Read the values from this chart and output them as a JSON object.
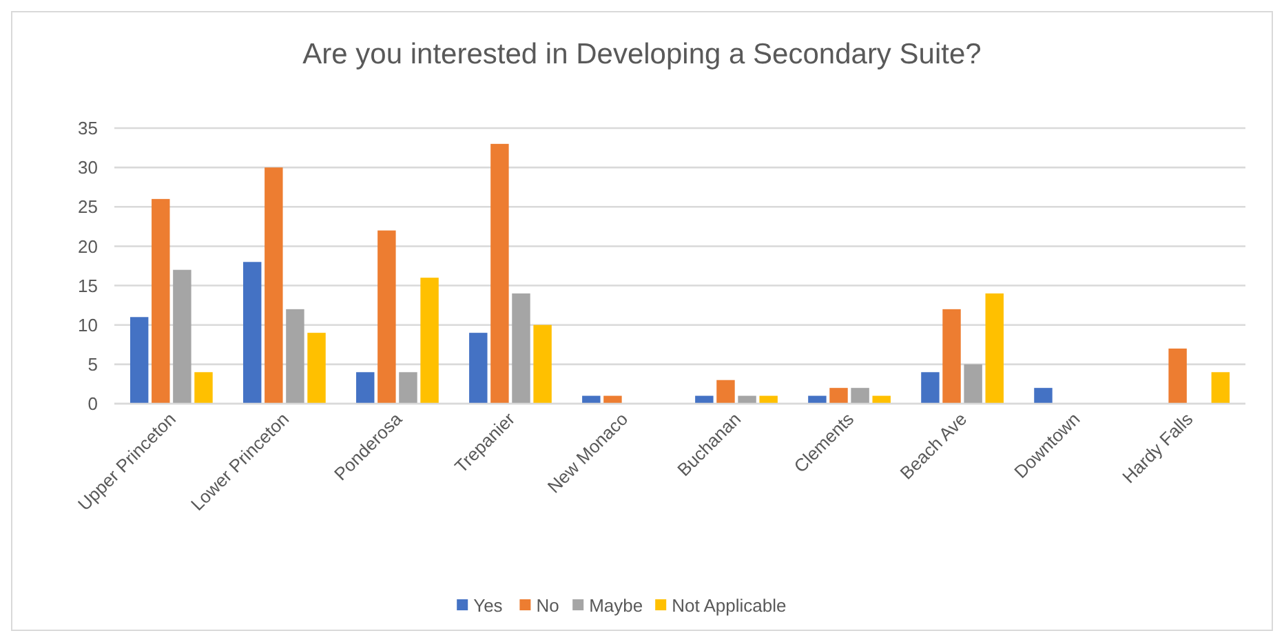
{
  "chart_data": {
    "type": "bar",
    "title": "Are you interested in Developing a Secondary Suite?",
    "categories": [
      "Upper Princeton",
      "Lower Princeton",
      "Ponderosa",
      "Trepanier",
      "New Monaco",
      "Buchanan",
      "Clements",
      "Beach Ave",
      "Downtown",
      "Hardy Falls"
    ],
    "series": [
      {
        "name": "Yes",
        "color": "#4472c4",
        "values": [
          11,
          18,
          4,
          9,
          1,
          1,
          1,
          4,
          2,
          0
        ]
      },
      {
        "name": "No",
        "color": "#ed7d31",
        "values": [
          26,
          30,
          22,
          33,
          1,
          3,
          2,
          12,
          0,
          7
        ]
      },
      {
        "name": "Maybe",
        "color": "#a5a5a5",
        "values": [
          17,
          12,
          4,
          14,
          0,
          1,
          2,
          5,
          0,
          0
        ]
      },
      {
        "name": "Not Applicable",
        "color": "#ffc000",
        "values": [
          4,
          9,
          16,
          10,
          0,
          1,
          1,
          14,
          0,
          4
        ]
      }
    ],
    "ylim": [
      0,
      35
    ],
    "yticks": [
      0,
      5,
      10,
      15,
      20,
      25,
      30,
      35
    ],
    "grid": "y",
    "legend": "bottom"
  }
}
